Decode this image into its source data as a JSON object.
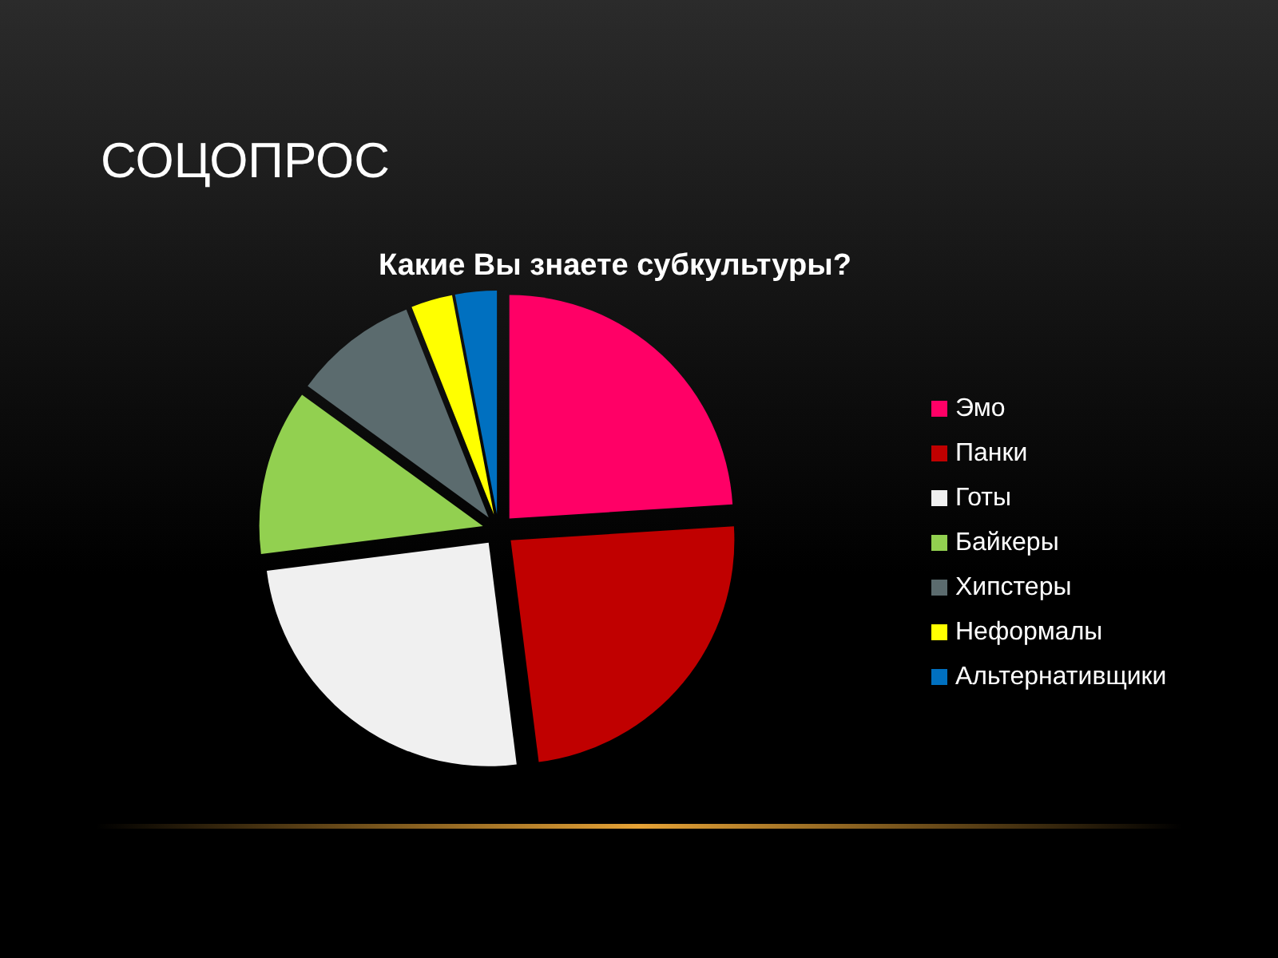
{
  "chart_data": {
    "type": "pie",
    "title": "СОЦОПРОС",
    "subtitle": "Какие Вы знаете субкультуры?",
    "categories": [
      "Эмо",
      "Панки",
      "Готы",
      "Байкеры",
      "Хипстеры",
      "Неформалы",
      "Альтернативщики"
    ],
    "values": [
      24,
      24,
      25,
      12,
      9,
      3,
      3
    ],
    "colors": [
      "#ff0066",
      "#c00000",
      "#f0f0f0",
      "#92d050",
      "#5b6b6e",
      "#ffff00",
      "#0070c0"
    ],
    "legend": "right"
  }
}
